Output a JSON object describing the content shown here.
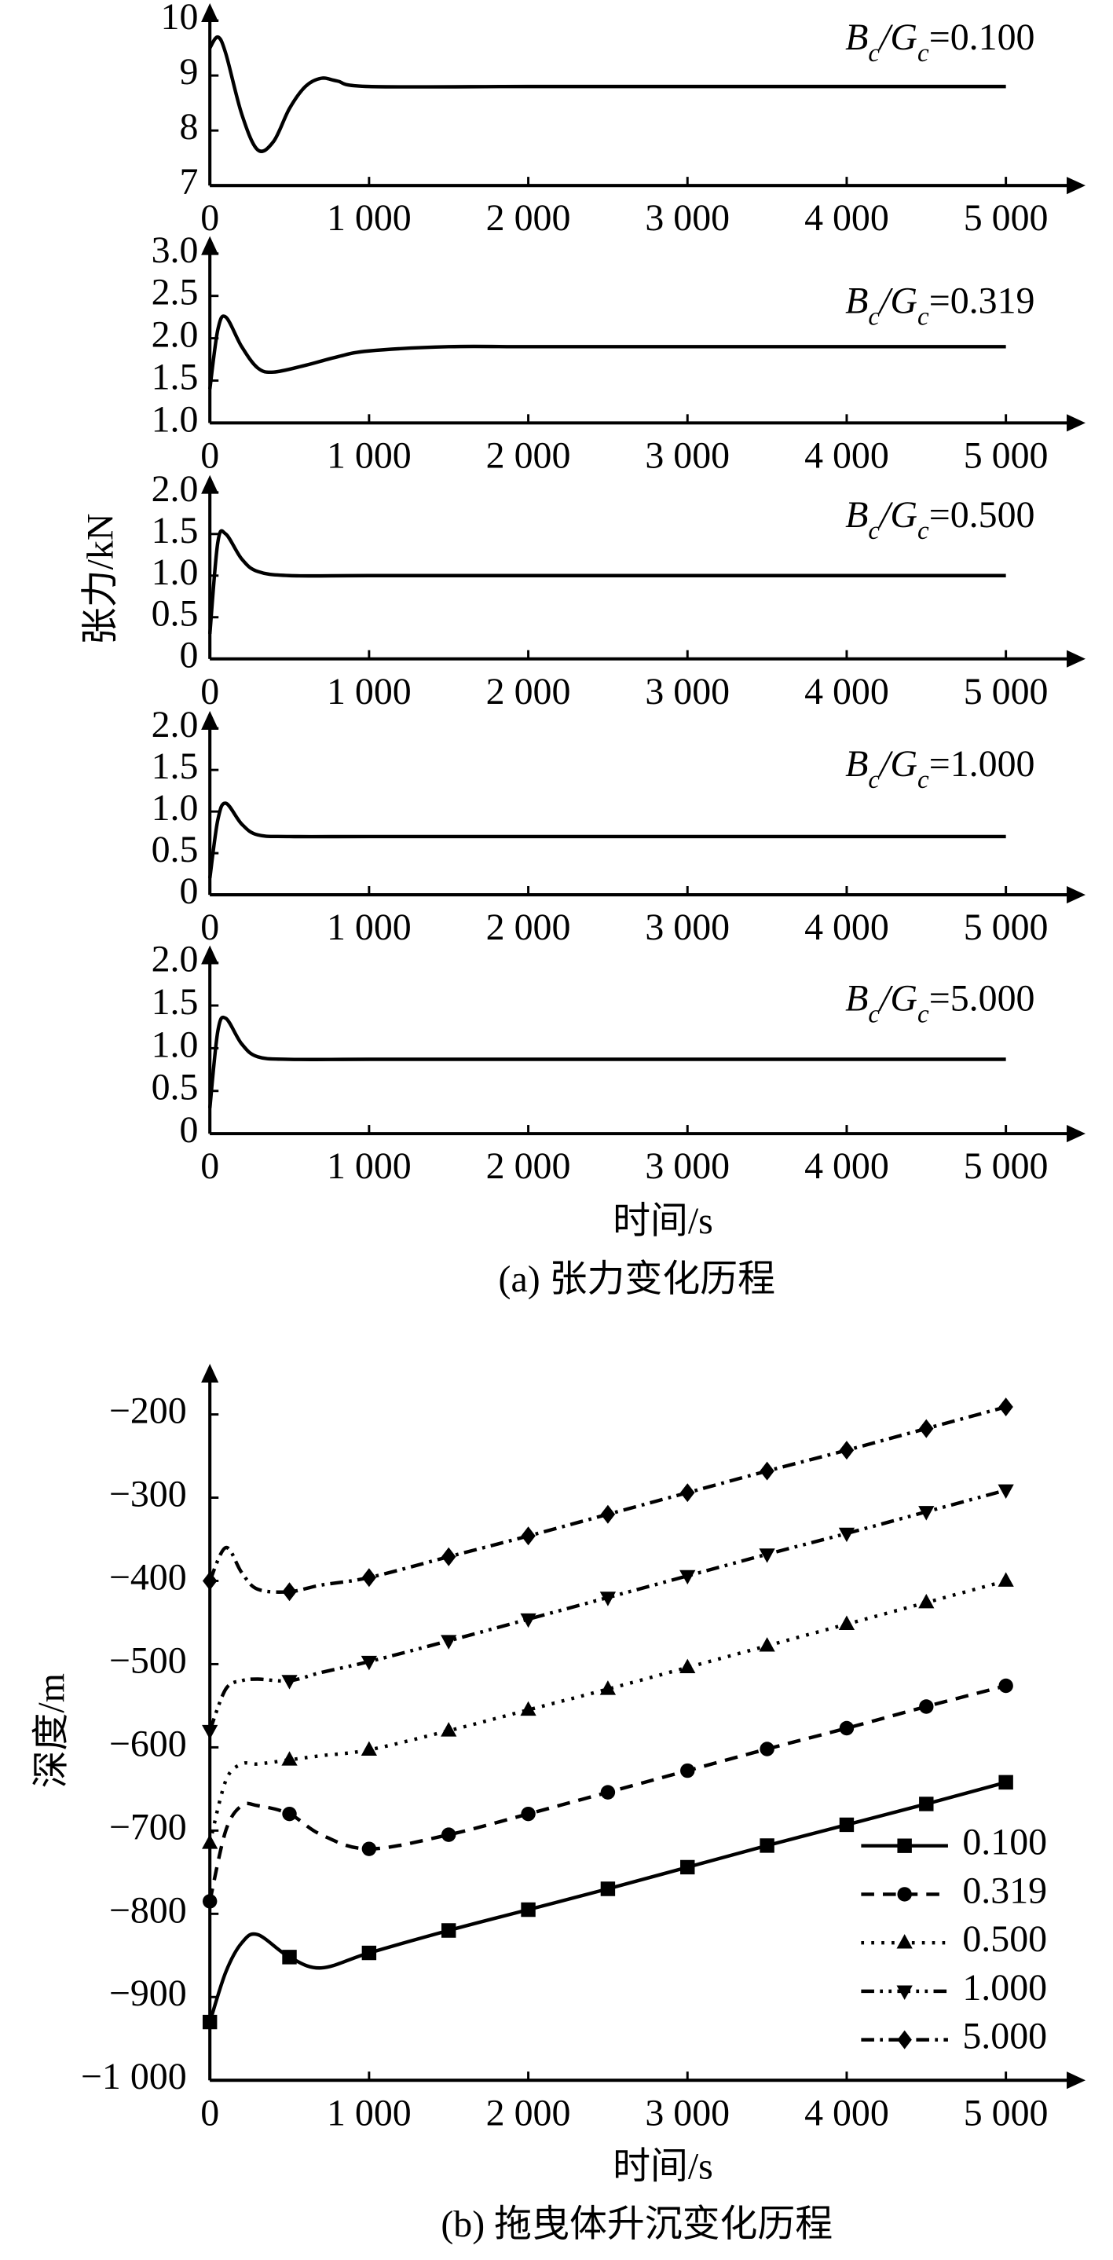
{
  "figure_a": {
    "y_label": "张力/kN",
    "x_label": "时间/s",
    "caption": "(a) 张力变化历程"
  },
  "chart_data": [
    {
      "type": "line",
      "annotation_parts": [
        "B",
        "c",
        "/G",
        "c",
        "=0.100"
      ],
      "x": [
        0,
        50,
        100,
        200,
        300,
        400,
        500,
        600,
        700,
        800,
        1000,
        2000,
        3000,
        4000,
        5000
      ],
      "series": [
        {
          "color": "#000000",
          "values": [
            9.5,
            9.7,
            9.4,
            8.3,
            7.65,
            7.8,
            8.4,
            8.8,
            8.95,
            8.9,
            8.8,
            8.8,
            8.8,
            8.8,
            8.8
          ]
        }
      ],
      "xlim": [
        0,
        5500
      ],
      "xticks": [
        0,
        {
          "value": 1000,
          "label": "1 000"
        },
        {
          "value": 2000,
          "label": "2 000"
        },
        {
          "value": 3000,
          "label": "3 000"
        },
        {
          "value": 4000,
          "label": "4 000"
        },
        {
          "value": 5000,
          "label": "5 000"
        }
      ],
      "ylim": [
        7,
        10
      ],
      "yticks": [
        7,
        8,
        9,
        10
      ]
    },
    {
      "type": "line",
      "annotation_parts": [
        "B",
        "c",
        "/G",
        "c",
        "=0.319"
      ],
      "x": [
        0,
        50,
        100,
        200,
        300,
        400,
        600,
        800,
        1000,
        1500,
        2000,
        3000,
        4000,
        5000
      ],
      "series": [
        {
          "color": "#000000",
          "values": [
            1.4,
            2.1,
            2.25,
            1.9,
            1.65,
            1.6,
            1.68,
            1.78,
            1.85,
            1.9,
            1.9,
            1.9,
            1.9,
            1.9
          ]
        }
      ],
      "xlim": [
        0,
        5500
      ],
      "xticks": [
        0,
        {
          "value": 1000,
          "label": "1 000"
        },
        {
          "value": 2000,
          "label": "2 000"
        },
        {
          "value": 3000,
          "label": "3 000"
        },
        {
          "value": 4000,
          "label": "4 000"
        },
        {
          "value": 5000,
          "label": "5 000"
        }
      ],
      "ylim": [
        1,
        3
      ],
      "yticks": [
        {
          "value": 1,
          "label": "1.0"
        },
        1.5,
        {
          "value": 2,
          "label": "2.0"
        },
        2.5,
        {
          "value": 3,
          "label": "3.0"
        }
      ]
    },
    {
      "type": "line",
      "annotation_parts": [
        "B",
        "c",
        "/G",
        "c",
        "=0.500"
      ],
      "x": [
        0,
        50,
        100,
        200,
        300,
        500,
        1000,
        2000,
        3000,
        4000,
        5000
      ],
      "series": [
        {
          "color": "#000000",
          "values": [
            0.3,
            1.4,
            1.5,
            1.2,
            1.05,
            1.0,
            1.0,
            1.0,
            1.0,
            1.0,
            1.0
          ]
        }
      ],
      "xlim": [
        0,
        5500
      ],
      "xticks": [
        0,
        {
          "value": 1000,
          "label": "1 000"
        },
        {
          "value": 2000,
          "label": "2 000"
        },
        {
          "value": 3000,
          "label": "3 000"
        },
        {
          "value": 4000,
          "label": "4 000"
        },
        {
          "value": 5000,
          "label": "5 000"
        }
      ],
      "ylim": [
        0,
        2
      ],
      "yticks": [
        0,
        0.5,
        {
          "value": 1,
          "label": "1.0"
        },
        1.5,
        {
          "value": 2,
          "label": "2.0"
        }
      ]
    },
    {
      "type": "line",
      "annotation_parts": [
        "B",
        "c",
        "/G",
        "c",
        "=1.000"
      ],
      "x": [
        0,
        50,
        100,
        200,
        300,
        500,
        1000,
        2000,
        3000,
        4000,
        5000
      ],
      "series": [
        {
          "color": "#000000",
          "values": [
            0.2,
            0.9,
            1.1,
            0.85,
            0.72,
            0.7,
            0.7,
            0.7,
            0.7,
            0.7,
            0.7
          ]
        }
      ],
      "xlim": [
        0,
        5500
      ],
      "xticks": [
        0,
        {
          "value": 1000,
          "label": "1 000"
        },
        {
          "value": 2000,
          "label": "2 000"
        },
        {
          "value": 3000,
          "label": "3 000"
        },
        {
          "value": 4000,
          "label": "4 000"
        },
        {
          "value": 5000,
          "label": "5 000"
        }
      ],
      "ylim": [
        0,
        2
      ],
      "yticks": [
        0,
        0.5,
        {
          "value": 1,
          "label": "1.0"
        },
        1.5,
        {
          "value": 2,
          "label": "2.0"
        }
      ]
    },
    {
      "type": "line",
      "annotation_parts": [
        "B",
        "c",
        "/G",
        "c",
        "=5.000"
      ],
      "x": [
        0,
        50,
        100,
        200,
        300,
        500,
        1000,
        2000,
        3000,
        4000,
        5000
      ],
      "series": [
        {
          "color": "#000000",
          "values": [
            0.3,
            1.2,
            1.35,
            1.05,
            0.9,
            0.87,
            0.87,
            0.87,
            0.87,
            0.87,
            0.87
          ]
        }
      ],
      "xlim": [
        0,
        5500
      ],
      "xticks": [
        0,
        {
          "value": 1000,
          "label": "1 000"
        },
        {
          "value": 2000,
          "label": "2 000"
        },
        {
          "value": 3000,
          "label": "3 000"
        },
        {
          "value": 4000,
          "label": "4 000"
        },
        {
          "value": 5000,
          "label": "5 000"
        }
      ],
      "ylim": [
        0,
        2
      ],
      "yticks": [
        0,
        0.5,
        {
          "value": 1,
          "label": "1.0"
        },
        1.5,
        {
          "value": 2,
          "label": "2.0"
        }
      ]
    },
    {
      "type": "line",
      "xlabel": "时间/s",
      "ylabel": "深度/m",
      "caption": "(b) 拖曳体升沉变化历程",
      "x": [
        0,
        100,
        200,
        300,
        500,
        700,
        1000,
        1500,
        2000,
        2500,
        3000,
        3500,
        4000,
        4500,
        5000
      ],
      "series": [
        {
          "name": "0.100",
          "color": "#000000",
          "dash": "solid",
          "marker": "square",
          "values": [
            -930,
            -870,
            -835,
            -825,
            -852,
            -865,
            -847,
            -820,
            -795,
            -770,
            -744,
            -718,
            -693,
            -668,
            -642
          ]
        },
        {
          "name": "0.319",
          "color": "#000000",
          "dash": "dashed",
          "marker": "circle",
          "values": [
            -785,
            -700,
            -670,
            -670,
            -680,
            -705,
            -722,
            -705,
            -680,
            -654,
            -628,
            -602,
            -577,
            -551,
            -526
          ]
        },
        {
          "name": "0.500",
          "color": "#000000",
          "dash": "dotted",
          "marker": "triangle-up",
          "values": [
            -715,
            -640,
            -620,
            -620,
            -615,
            -610,
            -603,
            -580,
            -555,
            -530,
            -504,
            -478,
            -452,
            -426,
            -400
          ]
        },
        {
          "name": "1.000",
          "color": "#000000",
          "dash": "dash-dot-dot",
          "marker": "triangle-down",
          "values": [
            -580,
            -530,
            -520,
            -518,
            -520,
            -510,
            -497,
            -472,
            -446,
            -420,
            -394,
            -368,
            -343,
            -317,
            -291
          ]
        },
        {
          "name": "5.000",
          "color": "#000000",
          "dash": "dash-dot",
          "marker": "diamond",
          "values": [
            -400,
            -360,
            -390,
            -410,
            -413,
            -405,
            -396,
            -371,
            -346,
            -320,
            -294,
            -268,
            -243,
            -217,
            -191
          ]
        }
      ],
      "xlim": [
        0,
        5500
      ],
      "xticks": [
        0,
        {
          "value": 1000,
          "label": "1 000"
        },
        {
          "value": 2000,
          "label": "2 000"
        },
        {
          "value": 3000,
          "label": "3 000"
        },
        {
          "value": 4000,
          "label": "4 000"
        },
        {
          "value": 5000,
          "label": "5 000"
        }
      ],
      "ylim": [
        -1000,
        -160
      ],
      "yticks": [
        {
          "value": -1000,
          "label": "−1 000"
        },
        {
          "value": -900,
          "label": "−900"
        },
        {
          "value": -800,
          "label": "−800"
        },
        {
          "value": -700,
          "label": "−700"
        },
        {
          "value": -600,
          "label": "−600"
        },
        {
          "value": -500,
          "label": "−500"
        },
        {
          "value": -400,
          "label": "−400"
        },
        {
          "value": -300,
          "label": "−300"
        },
        {
          "value": -200,
          "label": "−200"
        }
      ],
      "legend": "lower right"
    }
  ]
}
